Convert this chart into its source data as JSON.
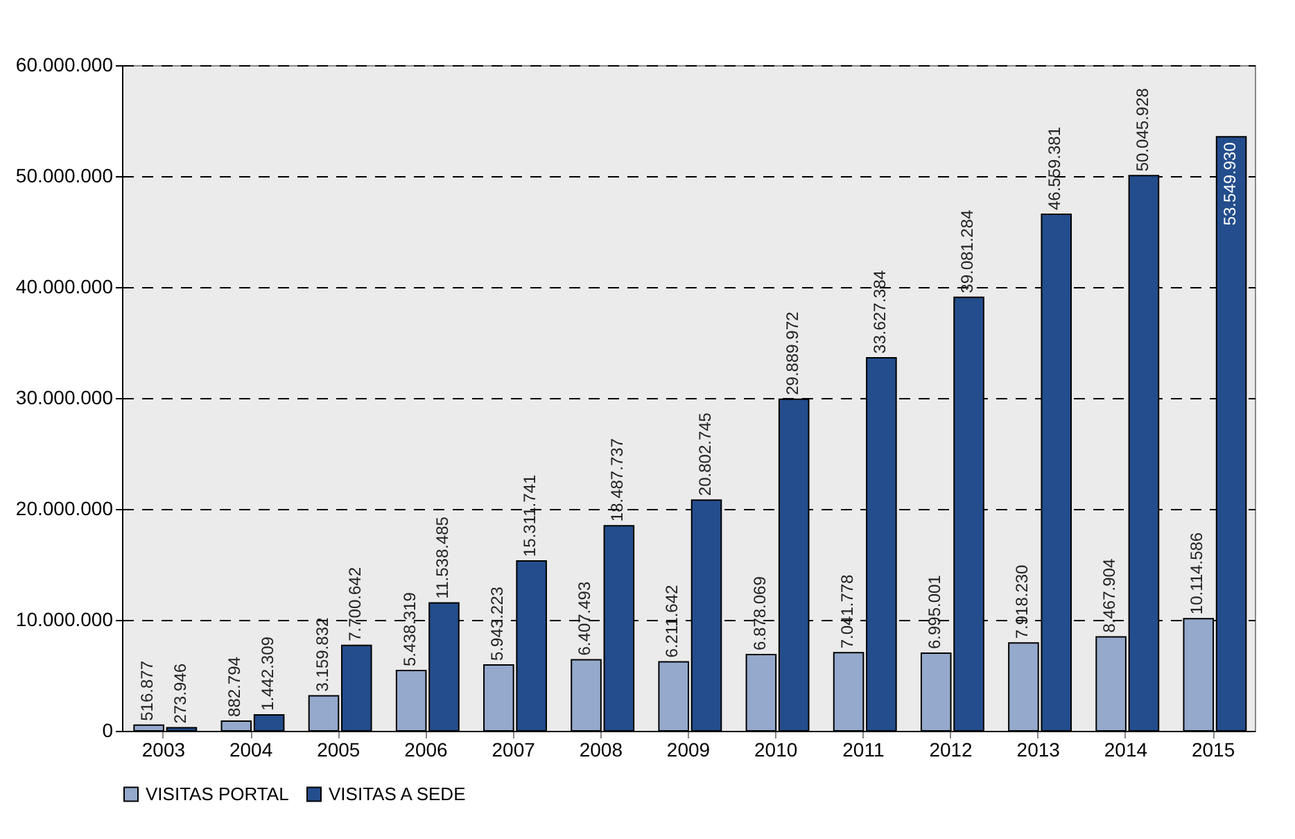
{
  "chart_data": {
    "type": "bar",
    "categories": [
      "2003",
      "2004",
      "2005",
      "2006",
      "2007",
      "2008",
      "2009",
      "2010",
      "2011",
      "2012",
      "2013",
      "2014",
      "2015"
    ],
    "series": [
      {
        "name": "VISITAS PORTAL",
        "color": "#94a9cc",
        "values": [
          516877,
          882794,
          3159832,
          5438319,
          5943223,
          6407493,
          6211642,
          6878069,
          7041778,
          6995001,
          7918230,
          8467904,
          10114586
        ],
        "value_labels": [
          "516.877",
          "882.794",
          "3.159.832",
          "5.438.319",
          "5.943.223",
          "6.407.493",
          "6.211.642",
          "6.878.069",
          "7.041.778",
          "6.995.001",
          "7.918.230",
          "8.467.904",
          "10.114.586"
        ]
      },
      {
        "name": "VISITAS A SEDE",
        "color": "#234d8c",
        "values": [
          273946,
          1442309,
          7700642,
          11538485,
          15311741,
          18487737,
          20802745,
          29889972,
          33627384,
          39081284,
          46559381,
          50045928,
          53549930
        ],
        "value_labels": [
          "273.946",
          "1.442.309",
          "7.700.642",
          "11.538.485",
          "15.311.741",
          "18.487.737",
          "20.802.745",
          "29.889.972",
          "33.627.384",
          "39.081.284",
          "46.559.381",
          "50.045.928",
          "53.549.930"
        ]
      }
    ],
    "ylim": [
      0,
      60000000
    ],
    "yticks": [
      0,
      {
        "value": 10000000,
        "label": "10.000.000"
      },
      {
        "value": 20000000,
        "label": "20.000.000"
      },
      {
        "value": 30000000,
        "label": "30.000.000"
      },
      {
        "value": 40000000,
        "label": "40.000.000"
      },
      {
        "value": 50000000,
        "label": "50.000.000"
      },
      {
        "value": 60000000,
        "label": "60.000.000"
      }
    ],
    "grid": "y",
    "legend": "bottom"
  }
}
